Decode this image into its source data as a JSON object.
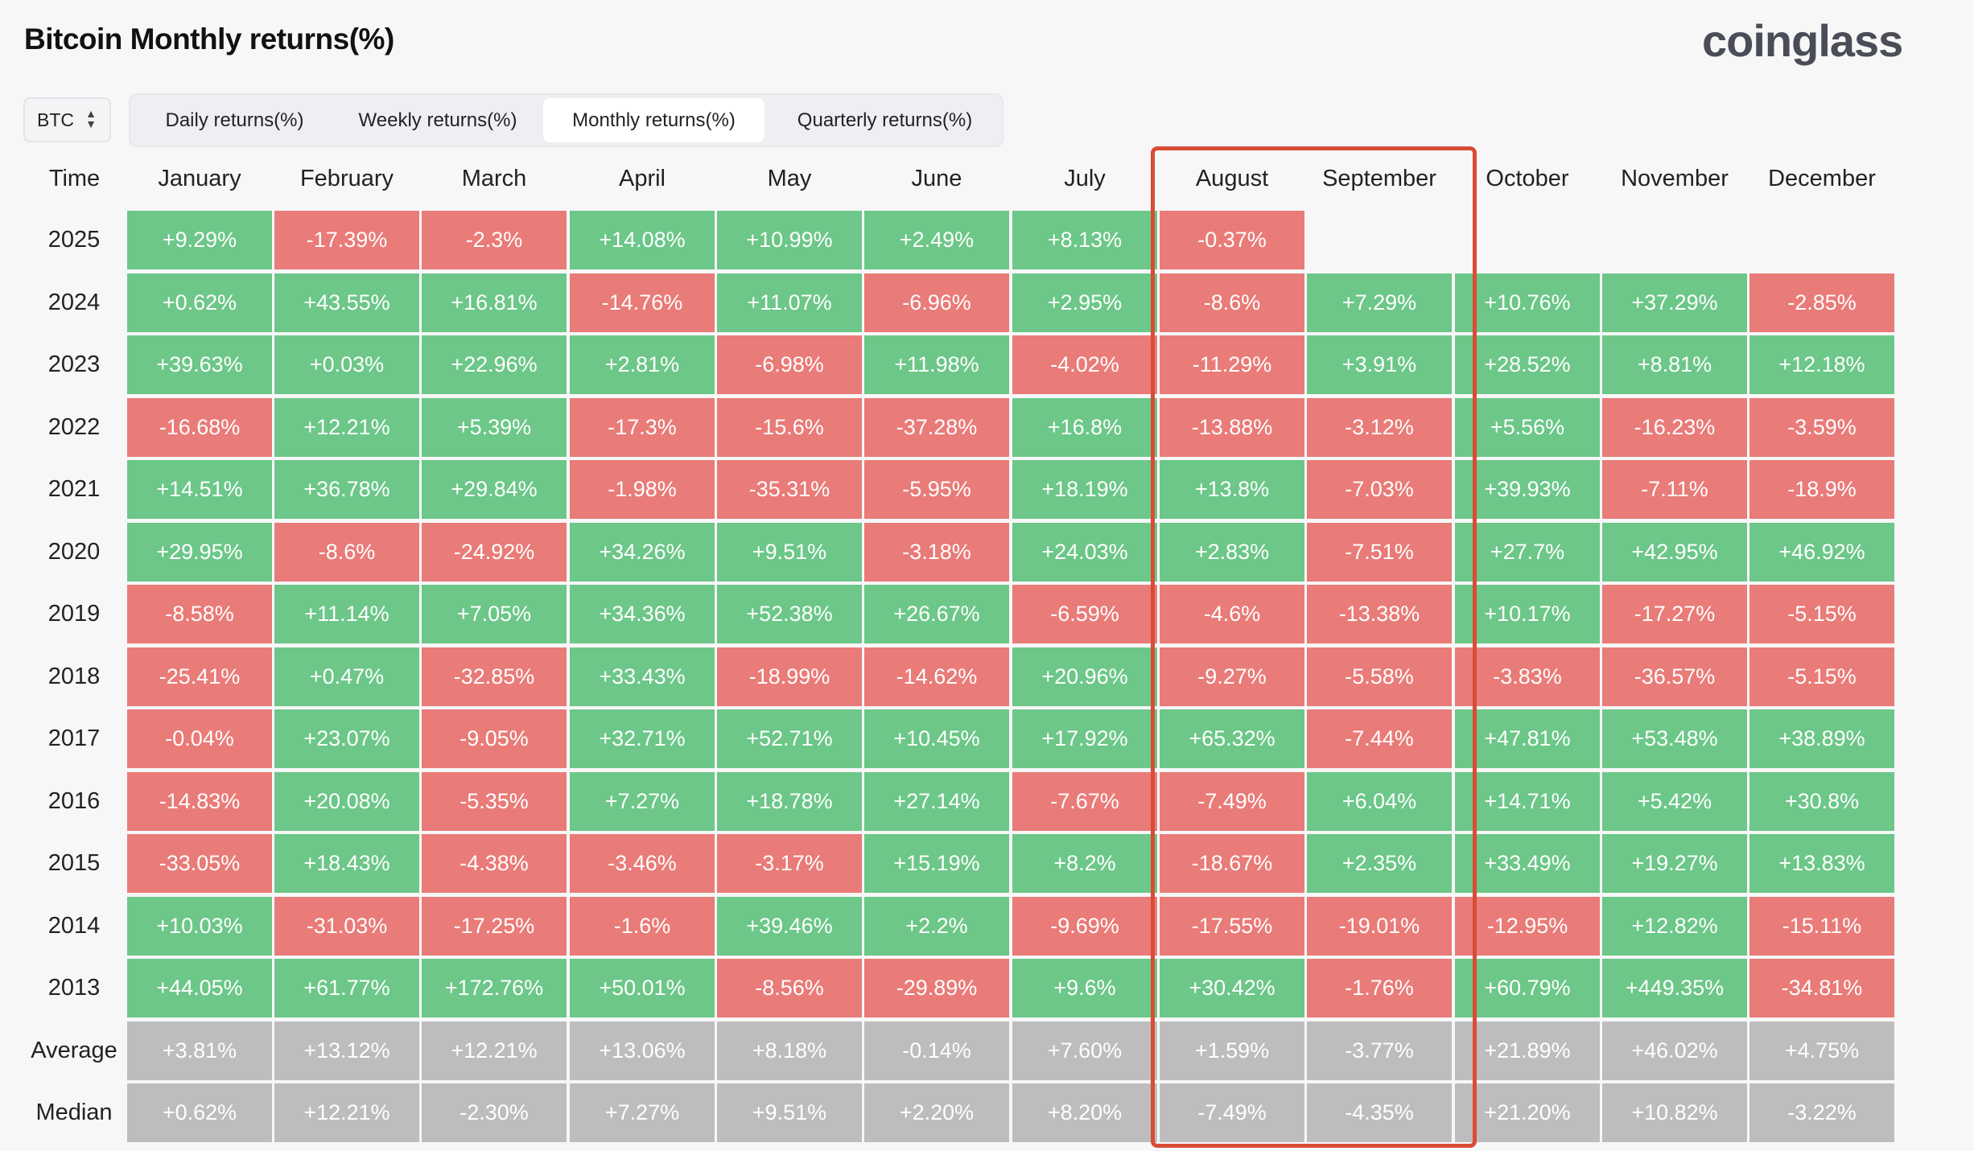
{
  "title": "Bitcoin Monthly returns(%)",
  "brand": "coinglass",
  "coin_select": {
    "value": "BTC"
  },
  "tabs": [
    {
      "label": "Daily returns(%)",
      "active": false
    },
    {
      "label": "Weekly returns(%)",
      "active": false
    },
    {
      "label": "Monthly returns(%)",
      "active": true
    },
    {
      "label": "Quarterly returns(%)",
      "active": false
    }
  ],
  "table": {
    "time_header": "Time",
    "months": [
      "January",
      "February",
      "March",
      "April",
      "May",
      "June",
      "July",
      "August",
      "September",
      "October",
      "November",
      "December"
    ],
    "rows": [
      {
        "label": "2025",
        "values": [
          "+9.29%",
          "-17.39%",
          "-2.3%",
          "+14.08%",
          "+10.99%",
          "+2.49%",
          "+8.13%",
          "-0.37%",
          "",
          "",
          "",
          ""
        ]
      },
      {
        "label": "2024",
        "values": [
          "+0.62%",
          "+43.55%",
          "+16.81%",
          "-14.76%",
          "+11.07%",
          "-6.96%",
          "+2.95%",
          "-8.6%",
          "+7.29%",
          "+10.76%",
          "+37.29%",
          "-2.85%"
        ]
      },
      {
        "label": "2023",
        "values": [
          "+39.63%",
          "+0.03%",
          "+22.96%",
          "+2.81%",
          "-6.98%",
          "+11.98%",
          "-4.02%",
          "-11.29%",
          "+3.91%",
          "+28.52%",
          "+8.81%",
          "+12.18%"
        ]
      },
      {
        "label": "2022",
        "values": [
          "-16.68%",
          "+12.21%",
          "+5.39%",
          "-17.3%",
          "-15.6%",
          "-37.28%",
          "+16.8%",
          "-13.88%",
          "-3.12%",
          "+5.56%",
          "-16.23%",
          "-3.59%"
        ]
      },
      {
        "label": "2021",
        "values": [
          "+14.51%",
          "+36.78%",
          "+29.84%",
          "-1.98%",
          "-35.31%",
          "-5.95%",
          "+18.19%",
          "+13.8%",
          "-7.03%",
          "+39.93%",
          "-7.11%",
          "-18.9%"
        ]
      },
      {
        "label": "2020",
        "values": [
          "+29.95%",
          "-8.6%",
          "-24.92%",
          "+34.26%",
          "+9.51%",
          "-3.18%",
          "+24.03%",
          "+2.83%",
          "-7.51%",
          "+27.7%",
          "+42.95%",
          "+46.92%"
        ]
      },
      {
        "label": "2019",
        "values": [
          "-8.58%",
          "+11.14%",
          "+7.05%",
          "+34.36%",
          "+52.38%",
          "+26.67%",
          "-6.59%",
          "-4.6%",
          "-13.38%",
          "+10.17%",
          "-17.27%",
          "-5.15%"
        ]
      },
      {
        "label": "2018",
        "values": [
          "-25.41%",
          "+0.47%",
          "-32.85%",
          "+33.43%",
          "-18.99%",
          "-14.62%",
          "+20.96%",
          "-9.27%",
          "-5.58%",
          "-3.83%",
          "-36.57%",
          "-5.15%"
        ]
      },
      {
        "label": "2017",
        "values": [
          "-0.04%",
          "+23.07%",
          "-9.05%",
          "+32.71%",
          "+52.71%",
          "+10.45%",
          "+17.92%",
          "+65.32%",
          "-7.44%",
          "+47.81%",
          "+53.48%",
          "+38.89%"
        ]
      },
      {
        "label": "2016",
        "values": [
          "-14.83%",
          "+20.08%",
          "-5.35%",
          "+7.27%",
          "+18.78%",
          "+27.14%",
          "-7.67%",
          "-7.49%",
          "+6.04%",
          "+14.71%",
          "+5.42%",
          "+30.8%"
        ]
      },
      {
        "label": "2015",
        "values": [
          "-33.05%",
          "+18.43%",
          "-4.38%",
          "-3.46%",
          "-3.17%",
          "+15.19%",
          "+8.2%",
          "-18.67%",
          "+2.35%",
          "+33.49%",
          "+19.27%",
          "+13.83%"
        ]
      },
      {
        "label": "2014",
        "values": [
          "+10.03%",
          "-31.03%",
          "-17.25%",
          "-1.6%",
          "+39.46%",
          "+2.2%",
          "-9.69%",
          "-17.55%",
          "-19.01%",
          "-12.95%",
          "+12.82%",
          "-15.11%"
        ]
      },
      {
        "label": "2013",
        "values": [
          "+44.05%",
          "+61.77%",
          "+172.76%",
          "+50.01%",
          "-8.56%",
          "-29.89%",
          "+9.6%",
          "+30.42%",
          "-1.76%",
          "+60.79%",
          "+449.35%",
          "-34.81%"
        ]
      },
      {
        "label": "Average",
        "summary": true,
        "values": [
          "+3.81%",
          "+13.12%",
          "+12.21%",
          "+13.06%",
          "+8.18%",
          "-0.14%",
          "+7.60%",
          "+1.59%",
          "-3.77%",
          "+21.89%",
          "+46.02%",
          "+4.75%"
        ]
      },
      {
        "label": "Median",
        "summary": true,
        "values": [
          "+0.62%",
          "+12.21%",
          "-2.30%",
          "+7.27%",
          "+9.51%",
          "+2.20%",
          "+8.20%",
          "-7.49%",
          "-4.35%",
          "+21.20%",
          "+10.82%",
          "-3.22%"
        ]
      }
    ]
  },
  "highlight": {
    "columns": [
      "August",
      "September"
    ],
    "color": "#d94c35"
  },
  "colors": {
    "positive": "#6cc788",
    "negative": "#e97b78",
    "summary": "#bdbdbd",
    "highlight": "#d94c35"
  }
}
